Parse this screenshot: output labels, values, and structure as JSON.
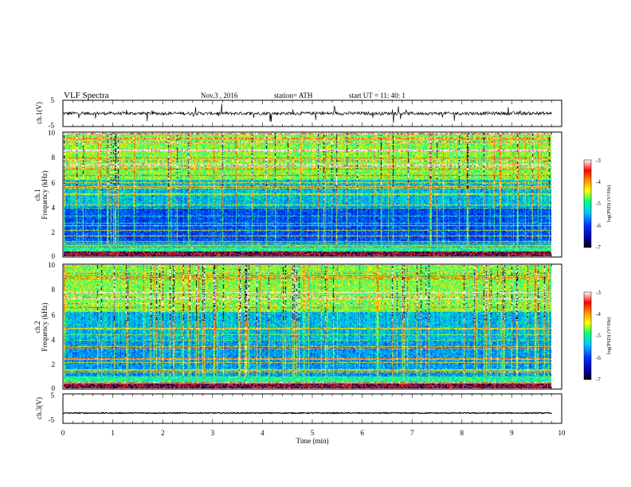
{
  "header": {
    "title": "VLF  Spectra",
    "date": "Nov.3  , 2016",
    "station": "station= ATH",
    "start_ut": "start  UT  =    11: 40: 1"
  },
  "chart_data": [
    {
      "type": "line",
      "panel": "ch.1 waveform",
      "ylabel": "ch.1(V)",
      "yticks": [
        "5",
        "-5"
      ],
      "ylim": [
        -5,
        5
      ],
      "xlim": [
        0,
        9.8
      ],
      "description_values": {
        "baseline": 0,
        "noise_amplitude": 1.2,
        "spike_amplitude": 3.5
      }
    },
    {
      "type": "heatmap",
      "panel": "ch.1 spectrogram",
      "ylabel_top": "ch.1",
      "ylabel": "Frequency  (kHz)",
      "yticks": [
        "0",
        "2",
        "4",
        "6",
        "8",
        "10"
      ],
      "ylim": [
        0,
        10
      ],
      "xlim": [
        0,
        9.8
      ],
      "colorbar": {
        "label": "log(PSD) (V²/Hz)",
        "ticks": [
          "-3",
          "-4",
          "-5",
          "-6",
          "-7"
        ],
        "range": [
          -7,
          -3
        ]
      }
    },
    {
      "type": "heatmap",
      "panel": "ch.2 spectrogram",
      "ylabel_top": "ch.2",
      "ylabel": "Frequency  (kHz)",
      "yticks": [
        "0",
        "2",
        "4",
        "6",
        "8",
        "10"
      ],
      "ylim": [
        0,
        10
      ],
      "xlim": [
        0,
        9.8
      ],
      "colorbar": {
        "label": "log(PSD) (V²/Hz)",
        "ticks": [
          "-3",
          "-4",
          "-5",
          "-6",
          "-7"
        ],
        "range": [
          -7,
          -3
        ]
      }
    },
    {
      "type": "line",
      "panel": "ch.3 waveform",
      "ylabel": "ch.3(V)",
      "yticks": [
        "5",
        "-5"
      ],
      "ylim": [
        -5,
        5
      ],
      "xlim": [
        0,
        9.8
      ],
      "description_values": {
        "baseline": -1.5,
        "noise_amplitude": 0.3
      }
    }
  ],
  "xaxis": {
    "label": "Time  (min)",
    "ticks": [
      "0",
      "1",
      "2",
      "3",
      "4",
      "5",
      "6",
      "7",
      "8",
      "9",
      "10"
    ],
    "range": [
      0,
      10
    ]
  },
  "colors": {
    "colormap": [
      "#000000",
      "#0000a0",
      "#0030ff",
      "#00c8ff",
      "#00ff80",
      "#ffff00",
      "#ff8000",
      "#ff0000",
      "#ffffff"
    ]
  }
}
